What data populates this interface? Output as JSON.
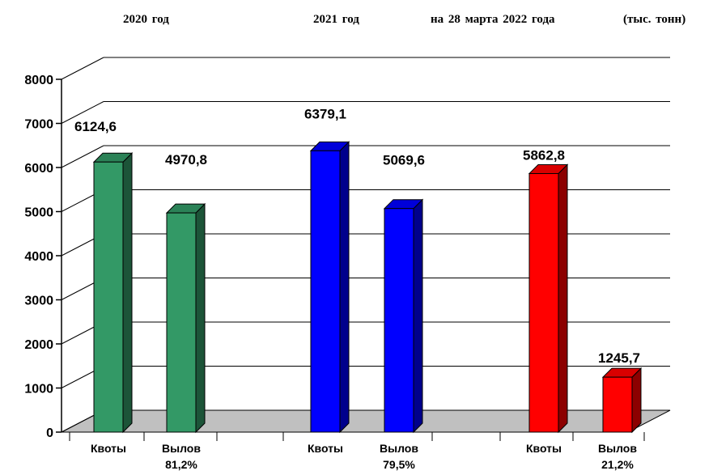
{
  "header": {
    "period_1": "2020  год",
    "period_2": "2021  год",
    "period_3": "на 28 марта 2022 года",
    "unit": "(тыс. тонн)"
  },
  "chart_data": {
    "type": "bar",
    "title": "",
    "xlabel": "",
    "ylabel": "",
    "ylim": [
      0,
      8000
    ],
    "y_ticks": [
      "0",
      "1000",
      "2000",
      "3000",
      "4000",
      "5000",
      "6000",
      "7000",
      "8000"
    ],
    "grid": true,
    "legend": "none",
    "groups": [
      "2020  год",
      "2021  год",
      "на 28 марта 2022 года"
    ],
    "categories": [
      [
        "Квоты"
      ],
      [
        "Вылов",
        "81,2%"
      ],
      [
        "Квоты"
      ],
      [
        "Вылов",
        "79,5%"
      ],
      [
        "Квоты"
      ],
      [
        "Вылов",
        "21,2%"
      ]
    ],
    "values": [
      6124.6,
      4970.8,
      6379.1,
      5069.6,
      5862.8,
      1245.7
    ],
    "value_labels": [
      "6124,6",
      "4970,8",
      "6379,1",
      "5069,6",
      "5862,8",
      "1245,7"
    ],
    "colors": [
      "#339966",
      "#339966",
      "#0000FF",
      "#0000FF",
      "#FF0000",
      "#FF0000"
    ],
    "wall_color": "#FFFFFF",
    "floor_color": "#C0C0C0"
  }
}
